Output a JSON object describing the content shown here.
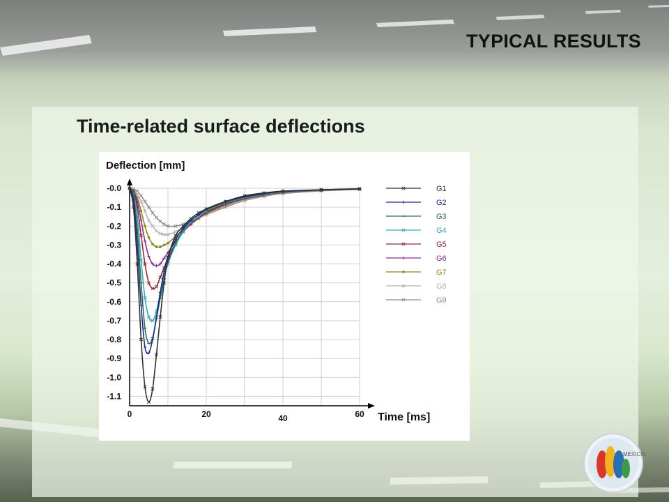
{
  "slide": {
    "title": "TYPICAL RESULTS",
    "subtitle": "Time-related surface deflections"
  },
  "chart_data": {
    "type": "line",
    "title": "",
    "xlabel": "Time [ms]",
    "ylabel": "Deflection [mm]",
    "xlim": [
      0,
      60
    ],
    "ylim": [
      -1.15,
      0.0
    ],
    "x_ticks": [
      0,
      20,
      40,
      60
    ],
    "x_tick_labels": [
      "0",
      "20",
      "40",
      "60"
    ],
    "y_ticks": [
      0,
      -0.1,
      -0.2,
      -0.3,
      -0.4,
      -0.5,
      -0.6,
      -0.7,
      -0.8,
      -0.9,
      -1.0,
      -1.1
    ],
    "y_tick_labels": [
      "-0.0",
      "-0.1",
      "-0.2",
      "-0.3",
      "-0.4",
      "-0.5",
      "-0.6",
      "-0.7",
      "-0.8",
      "-0.9",
      "-1.0",
      "-1.1"
    ],
    "grid": true,
    "legend_position": "right",
    "series": [
      {
        "name": "G1",
        "color": "#303030",
        "marker": "x",
        "x": [
          0,
          1,
          2,
          3,
          4,
          5,
          6,
          7,
          8,
          9,
          10,
          12,
          14,
          16,
          18,
          20,
          25,
          30,
          35,
          40,
          50,
          60
        ],
        "y": [
          0,
          -0.1,
          -0.4,
          -0.8,
          -1.05,
          -1.13,
          -1.06,
          -0.88,
          -0.68,
          -0.5,
          -0.37,
          -0.25,
          -0.2,
          -0.16,
          -0.13,
          -0.11,
          -0.07,
          -0.04,
          -0.025,
          -0.015,
          -0.008,
          -0.003
        ]
      },
      {
        "name": "G2",
        "color": "#1f2a80",
        "marker": "+",
        "x": [
          0,
          1,
          2,
          3,
          4,
          5,
          6,
          7,
          8,
          9,
          10,
          12,
          14,
          16,
          18,
          20,
          25,
          30,
          35,
          40,
          50,
          60
        ],
        "y": [
          0,
          -0.06,
          -0.3,
          -0.62,
          -0.84,
          -0.87,
          -0.8,
          -0.68,
          -0.55,
          -0.44,
          -0.36,
          -0.27,
          -0.21,
          -0.17,
          -0.14,
          -0.11,
          -0.07,
          -0.045,
          -0.028,
          -0.017,
          -0.008,
          -0.003
        ]
      },
      {
        "name": "G3",
        "color": "#2a6e5a",
        "marker": "-",
        "x": [
          0,
          1,
          2,
          3,
          4,
          5,
          6,
          7,
          8,
          9,
          10,
          12,
          14,
          16,
          18,
          20,
          25,
          30,
          35,
          40,
          50,
          60
        ],
        "y": [
          0,
          -0.04,
          -0.22,
          -0.5,
          -0.74,
          -0.82,
          -0.79,
          -0.69,
          -0.58,
          -0.48,
          -0.39,
          -0.29,
          -0.22,
          -0.17,
          -0.14,
          -0.115,
          -0.075,
          -0.047,
          -0.03,
          -0.018,
          -0.009,
          -0.004
        ]
      },
      {
        "name": "G4",
        "color": "#3aa7b6",
        "marker": "x",
        "x": [
          0,
          1,
          2,
          3,
          4,
          5,
          6,
          7,
          8,
          9,
          10,
          12,
          14,
          16,
          18,
          20,
          25,
          30,
          35,
          40,
          50,
          60
        ],
        "y": [
          0,
          -0.03,
          -0.15,
          -0.38,
          -0.58,
          -0.68,
          -0.7,
          -0.65,
          -0.56,
          -0.47,
          -0.4,
          -0.3,
          -0.23,
          -0.18,
          -0.15,
          -0.12,
          -0.078,
          -0.05,
          -0.032,
          -0.02,
          -0.01,
          -0.004
        ]
      },
      {
        "name": "G5",
        "color": "#8c2a3a",
        "marker": "x",
        "x": [
          0,
          1,
          2,
          3,
          4,
          5,
          6,
          7,
          8,
          9,
          10,
          12,
          14,
          16,
          18,
          20,
          25,
          30,
          35,
          40,
          50,
          60
        ],
        "y": [
          0,
          -0.02,
          -0.1,
          -0.25,
          -0.4,
          -0.5,
          -0.53,
          -0.52,
          -0.47,
          -0.42,
          -0.37,
          -0.29,
          -0.23,
          -0.185,
          -0.15,
          -0.125,
          -0.08,
          -0.052,
          -0.034,
          -0.021,
          -0.01,
          -0.004
        ]
      },
      {
        "name": "G6",
        "color": "#8a2a8c",
        "marker": "+",
        "x": [
          0,
          1,
          2,
          3,
          4,
          5,
          6,
          7,
          8,
          9,
          10,
          12,
          14,
          16,
          18,
          20,
          25,
          30,
          35,
          40,
          50,
          60
        ],
        "y": [
          0,
          -0.015,
          -0.07,
          -0.17,
          -0.28,
          -0.36,
          -0.4,
          -0.41,
          -0.4,
          -0.37,
          -0.34,
          -0.28,
          -0.23,
          -0.19,
          -0.155,
          -0.13,
          -0.085,
          -0.055,
          -0.036,
          -0.022,
          -0.011,
          -0.004
        ]
      },
      {
        "name": "G7",
        "color": "#8a8a1a",
        "marker": "*",
        "x": [
          0,
          1,
          2,
          3,
          4,
          5,
          6,
          7,
          8,
          9,
          10,
          12,
          14,
          16,
          18,
          20,
          25,
          30,
          35,
          40,
          50,
          60
        ],
        "y": [
          0,
          -0.01,
          -0.05,
          -0.12,
          -0.2,
          -0.26,
          -0.295,
          -0.31,
          -0.31,
          -0.3,
          -0.29,
          -0.255,
          -0.22,
          -0.19,
          -0.16,
          -0.135,
          -0.09,
          -0.058,
          -0.038,
          -0.024,
          -0.012,
          -0.005
        ]
      },
      {
        "name": "G8",
        "color": "#b4b4b4",
        "marker": "x",
        "x": [
          0,
          1,
          2,
          3,
          4,
          5,
          6,
          7,
          8,
          9,
          10,
          12,
          14,
          16,
          18,
          20,
          25,
          30,
          35,
          40,
          50,
          60
        ],
        "y": [
          0,
          -0.005,
          -0.03,
          -0.07,
          -0.12,
          -0.17,
          -0.2,
          -0.225,
          -0.24,
          -0.245,
          -0.245,
          -0.23,
          -0.21,
          -0.185,
          -0.16,
          -0.14,
          -0.095,
          -0.062,
          -0.04,
          -0.026,
          -0.013,
          -0.005
        ]
      },
      {
        "name": "G9",
        "color": "#8a8a8a",
        "marker": "x",
        "x": [
          0,
          1,
          2,
          3,
          4,
          5,
          6,
          7,
          8,
          9,
          10,
          12,
          14,
          16,
          18,
          20,
          25,
          30,
          35,
          40,
          50,
          60
        ],
        "y": [
          0,
          -0.003,
          -0.015,
          -0.04,
          -0.07,
          -0.1,
          -0.13,
          -0.155,
          -0.175,
          -0.19,
          -0.2,
          -0.2,
          -0.19,
          -0.175,
          -0.155,
          -0.14,
          -0.1,
          -0.065,
          -0.043,
          -0.028,
          -0.014,
          -0.006
        ]
      }
    ]
  },
  "colors": {
    "slide_green": "#d8e6cf",
    "road_gray": "#7b7f7b",
    "chart_background": "#ffffff",
    "grid": "#cfcfcf"
  },
  "logo": {
    "icon": "mexico-conference-logo-icon",
    "text": "MEXICO"
  }
}
